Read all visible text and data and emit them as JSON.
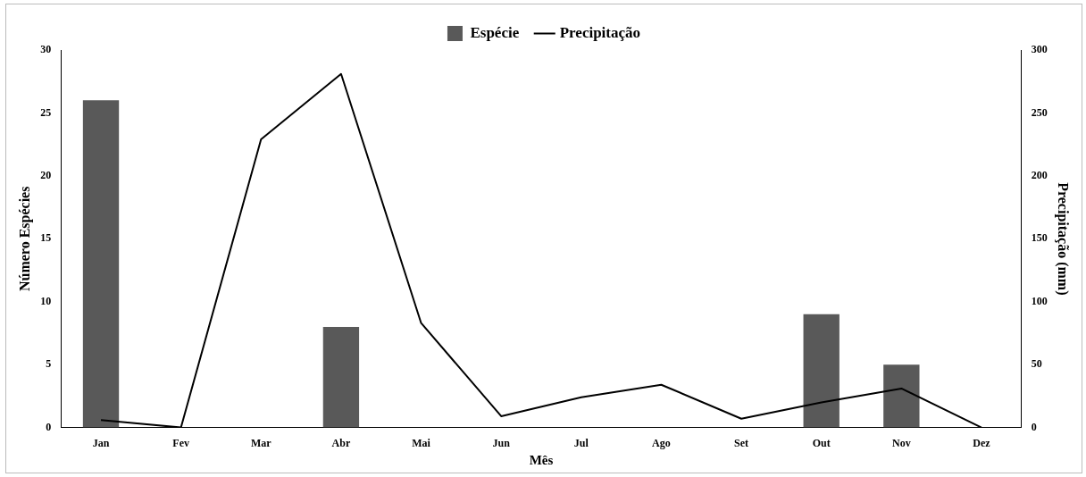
{
  "chart_data": {
    "type": "bar",
    "xlabel": "Mês",
    "ylabel": "Número Espécies",
    "y2label": "Precipitação (mm)",
    "categories": [
      "Jan",
      "Fev",
      "Mar",
      "Abr",
      "Mai",
      "Jun",
      "Jul",
      "Ago",
      "Set",
      "Out",
      "Nov",
      "Dez"
    ],
    "series": [
      {
        "name": "Espécie",
        "color": "#595959",
        "values": [
          26,
          0,
          0,
          8,
          0,
          0,
          0,
          0,
          0,
          9,
          5,
          0
        ]
      },
      {
        "name": "Precipitação",
        "type": "line",
        "axis": "y2",
        "color": "#000000",
        "values": [
          6,
          0,
          229,
          281,
          83,
          9,
          24,
          34,
          7,
          20,
          31,
          0
        ]
      }
    ],
    "ylim": [
      0,
      30
    ],
    "yticks": [
      0,
      5,
      10,
      15,
      20,
      25,
      30
    ],
    "y2lim": [
      0,
      300
    ],
    "y2ticks": [
      0,
      50,
      100,
      150,
      200,
      250,
      300
    ],
    "grid": false,
    "legend": "top",
    "marker": "none",
    "line_style": "solid"
  }
}
